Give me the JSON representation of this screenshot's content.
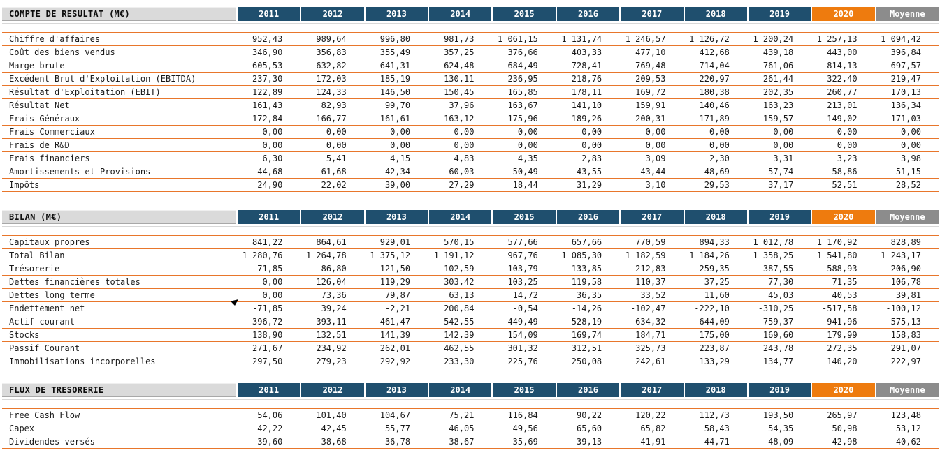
{
  "columns": [
    "2011",
    "2012",
    "2013",
    "2014",
    "2015",
    "2016",
    "2017",
    "2018",
    "2019",
    "2020",
    "Moyenne"
  ],
  "highlight_column": "2020",
  "average_column": "Moyenne",
  "colors": {
    "navy": "#1f4f6e",
    "orange": "#ee7b0e",
    "row_border_orange": "#e8762b",
    "average_gray": "#8c8c8c",
    "band_gray": "#dadada"
  },
  "tables": [
    {
      "title": "COMPTE DE RESULTAT (M€)",
      "rows": [
        {
          "label": "Chiffre d'affaires",
          "values": [
            "952,43",
            "989,64",
            "996,80",
            "981,73",
            "1 061,15",
            "1 131,74",
            "1 246,57",
            "1 126,72",
            "1 200,24",
            "1 257,13",
            "1 094,42"
          ]
        },
        {
          "label": "Coût des biens vendus",
          "values": [
            "346,90",
            "356,83",
            "355,49",
            "357,25",
            "376,66",
            "403,33",
            "477,10",
            "412,68",
            "439,18",
            "443,00",
            "396,84"
          ]
        },
        {
          "label": "Marge brute",
          "values": [
            "605,53",
            "632,82",
            "641,31",
            "624,48",
            "684,49",
            "728,41",
            "769,48",
            "714,04",
            "761,06",
            "814,13",
            "697,57"
          ]
        },
        {
          "label": "Excédent Brut d'Exploitation (EBITDA)",
          "values": [
            "237,30",
            "172,03",
            "185,19",
            "130,11",
            "236,95",
            "218,76",
            "209,53",
            "220,97",
            "261,44",
            "322,40",
            "219,47"
          ]
        },
        {
          "label": "Résultat d'Exploitation (EBIT)",
          "values": [
            "122,89",
            "124,33",
            "146,50",
            "150,45",
            "165,85",
            "178,11",
            "169,72",
            "180,38",
            "202,35",
            "260,77",
            "170,13"
          ]
        },
        {
          "label": "Résultat Net",
          "values": [
            "161,43",
            "82,93",
            "99,70",
            "37,96",
            "163,67",
            "141,10",
            "159,91",
            "140,46",
            "163,23",
            "213,01",
            "136,34"
          ]
        },
        {
          "label": "Frais Généraux",
          "values": [
            "172,84",
            "166,77",
            "161,61",
            "163,12",
            "175,96",
            "189,26",
            "200,31",
            "171,89",
            "159,57",
            "149,02",
            "171,03"
          ]
        },
        {
          "label": "Frais Commerciaux",
          "values": [
            "0,00",
            "0,00",
            "0,00",
            "0,00",
            "0,00",
            "0,00",
            "0,00",
            "0,00",
            "0,00",
            "0,00",
            "0,00"
          ]
        },
        {
          "label": "Frais de R&D",
          "values": [
            "0,00",
            "0,00",
            "0,00",
            "0,00",
            "0,00",
            "0,00",
            "0,00",
            "0,00",
            "0,00",
            "0,00",
            "0,00"
          ]
        },
        {
          "label": "Frais financiers",
          "values": [
            "6,30",
            "5,41",
            "4,15",
            "4,83",
            "4,35",
            "2,83",
            "3,09",
            "2,30",
            "3,31",
            "3,23",
            "3,98"
          ]
        },
        {
          "label": "Amortissements et Provisions",
          "values": [
            "44,68",
            "61,68",
            "42,34",
            "60,03",
            "50,49",
            "43,55",
            "43,44",
            "48,69",
            "57,74",
            "58,86",
            "51,15"
          ]
        },
        {
          "label": "Impôts",
          "values": [
            "24,90",
            "22,02",
            "39,00",
            "27,29",
            "18,44",
            "31,29",
            "3,10",
            "29,53",
            "37,17",
            "52,51",
            "28,52"
          ]
        }
      ]
    },
    {
      "title": "BILAN (M€)",
      "rows": [
        {
          "label": "Capitaux propres",
          "values": [
            "841,22",
            "864,61",
            "929,01",
            "570,15",
            "577,66",
            "657,66",
            "770,59",
            "894,33",
            "1 012,78",
            "1 170,92",
            "828,89"
          ]
        },
        {
          "label": "Total Bilan",
          "values": [
            "1 280,76",
            "1 264,78",
            "1 375,12",
            "1 191,12",
            "967,76",
            "1 085,30",
            "1 182,59",
            "1 184,26",
            "1 358,25",
            "1 541,80",
            "1 243,17"
          ]
        },
        {
          "label": "Trésorerie",
          "values": [
            "71,85",
            "86,80",
            "121,50",
            "102,59",
            "103,79",
            "133,85",
            "212,83",
            "259,35",
            "387,55",
            "588,93",
            "206,90"
          ]
        },
        {
          "label": "Dettes financières totales",
          "values": [
            "0,00",
            "126,04",
            "119,29",
            "303,42",
            "103,25",
            "119,58",
            "110,37",
            "37,25",
            "77,30",
            "71,35",
            "106,78"
          ]
        },
        {
          "label": "Dettes long terme",
          "values": [
            "0,00",
            "73,36",
            "79,87",
            "63,13",
            "14,72",
            "36,35",
            "33,52",
            "11,60",
            "45,03",
            "40,53",
            "39,81"
          ]
        },
        {
          "label": "Endettement net",
          "values": [
            "-71,85",
            "39,24",
            "-2,21",
            "200,84",
            "-0,54",
            "-14,26",
            "-102,47",
            "-222,10",
            "-310,25",
            "-517,58",
            "-100,12"
          ]
        },
        {
          "label": "Actif courant",
          "values": [
            "396,72",
            "393,11",
            "461,47",
            "542,55",
            "449,49",
            "528,19",
            "634,32",
            "644,09",
            "759,37",
            "941,96",
            "575,13"
          ]
        },
        {
          "label": "Stocks",
          "values": [
            "138,90",
            "132,51",
            "141,39",
            "142,39",
            "154,09",
            "169,74",
            "184,71",
            "175,00",
            "169,60",
            "179,99",
            "158,83"
          ]
        },
        {
          "label": "Passif Courant",
          "values": [
            "271,67",
            "234,92",
            "262,01",
            "462,55",
            "301,32",
            "312,51",
            "325,73",
            "223,87",
            "243,78",
            "272,35",
            "291,07"
          ]
        },
        {
          "label": "Immobilisations incorporelles",
          "values": [
            "297,50",
            "279,23",
            "292,92",
            "233,30",
            "225,76",
            "250,08",
            "242,61",
            "133,29",
            "134,77",
            "140,20",
            "222,97"
          ]
        }
      ]
    },
    {
      "title": "FLUX DE TRESORERIE",
      "rows": [
        {
          "label": "Free Cash Flow",
          "values": [
            "54,06",
            "101,40",
            "104,67",
            "75,21",
            "116,84",
            "90,22",
            "120,22",
            "112,73",
            "193,50",
            "265,97",
            "123,48"
          ]
        },
        {
          "label": "Capex",
          "values": [
            "42,22",
            "42,45",
            "55,77",
            "46,05",
            "49,56",
            "65,60",
            "65,82",
            "58,43",
            "54,35",
            "50,98",
            "53,12"
          ]
        },
        {
          "label": "Dividendes versés",
          "values": [
            "39,60",
            "38,68",
            "36,78",
            "38,67",
            "35,69",
            "39,13",
            "41,91",
            "44,71",
            "48,09",
            "42,98",
            "40,62"
          ]
        }
      ]
    }
  ]
}
